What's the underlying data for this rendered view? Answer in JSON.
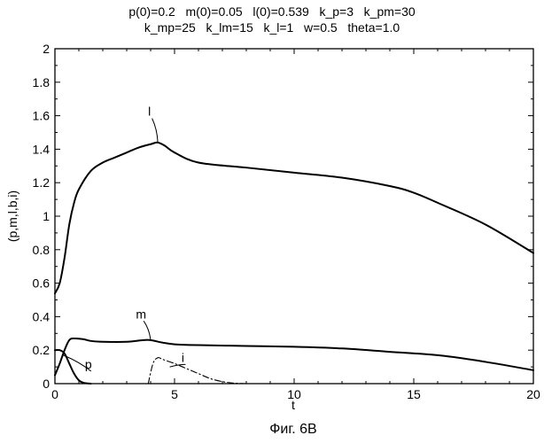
{
  "header": {
    "line1": "p(0)=0.2   m(0)=0.05   l(0)=0.539   k_p=3   k_pm=30",
    "line2": "k_mp=25   k_lm=15   k_l=1   w=0.5   theta=1.0"
  },
  "caption": "Фиг. 6В",
  "chart_data": {
    "type": "line",
    "xlabel": "t",
    "ylabel": "(p,m,l,b,i)",
    "xlim": [
      0,
      20
    ],
    "ylim": [
      0,
      2
    ],
    "x_ticks": [
      0,
      5,
      10,
      15,
      20
    ],
    "y_ticks": [
      0,
      0.2,
      0.4,
      0.6,
      0.8,
      1,
      1.2,
      1.4,
      1.6,
      1.8,
      2
    ],
    "x_tick_labels": [
      "0",
      "5",
      "10",
      "15",
      "20"
    ],
    "y_tick_labels": [
      "0",
      "0.2",
      "0.4",
      "0.6",
      "0.8",
      "1",
      "1.2",
      "1.4",
      "1.6",
      "1.8",
      "2"
    ],
    "grid": false,
    "series": [
      {
        "name": "l",
        "style": "solid",
        "points": [
          [
            0,
            0.539
          ],
          [
            0.2,
            0.6
          ],
          [
            0.4,
            0.75
          ],
          [
            0.6,
            0.95
          ],
          [
            0.8,
            1.08
          ],
          [
            1,
            1.16
          ],
          [
            1.5,
            1.27
          ],
          [
            2,
            1.32
          ],
          [
            2.5,
            1.35
          ],
          [
            3,
            1.38
          ],
          [
            3.5,
            1.41
          ],
          [
            4,
            1.43
          ],
          [
            4.3,
            1.44
          ],
          [
            4.6,
            1.42
          ],
          [
            5,
            1.38
          ],
          [
            6,
            1.32
          ],
          [
            8,
            1.29
          ],
          [
            10,
            1.26
          ],
          [
            12,
            1.23
          ],
          [
            14,
            1.18
          ],
          [
            15,
            1.14
          ],
          [
            16,
            1.08
          ],
          [
            18,
            0.95
          ],
          [
            20,
            0.78
          ]
        ]
      },
      {
        "name": "m",
        "style": "solid",
        "points": [
          [
            0,
            0.05
          ],
          [
            0.2,
            0.12
          ],
          [
            0.4,
            0.2
          ],
          [
            0.6,
            0.26
          ],
          [
            0.8,
            0.27
          ],
          [
            1.2,
            0.265
          ],
          [
            1.5,
            0.255
          ],
          [
            2,
            0.25
          ],
          [
            3,
            0.25
          ],
          [
            3.7,
            0.26
          ],
          [
            4,
            0.26
          ],
          [
            4.5,
            0.245
          ],
          [
            5,
            0.235
          ],
          [
            6,
            0.23
          ],
          [
            8,
            0.225
          ],
          [
            10,
            0.22
          ],
          [
            12,
            0.21
          ],
          [
            14,
            0.19
          ],
          [
            16,
            0.17
          ],
          [
            18,
            0.13
          ],
          [
            20,
            0.08
          ]
        ]
      },
      {
        "name": "p",
        "style": "solid",
        "points": [
          [
            0,
            0.2
          ],
          [
            0.2,
            0.2
          ],
          [
            0.4,
            0.18
          ],
          [
            0.6,
            0.12
          ],
          [
            0.8,
            0.06
          ],
          [
            1,
            0.02
          ],
          [
            1.2,
            0.005
          ],
          [
            1.5,
            0
          ]
        ]
      },
      {
        "name": "i",
        "style": "dash-dot",
        "points": [
          [
            3.9,
            0
          ],
          [
            4.1,
            0.12
          ],
          [
            4.3,
            0.155
          ],
          [
            4.5,
            0.145
          ],
          [
            5,
            0.12
          ],
          [
            5.5,
            0.09
          ],
          [
            6,
            0.06
          ],
          [
            6.5,
            0.03
          ],
          [
            7,
            0.012
          ],
          [
            7.5,
            0.003
          ],
          [
            8,
            0
          ]
        ]
      }
    ],
    "annotations": [
      {
        "text": "l",
        "at": [
          4.3,
          1.44
        ],
        "label_at": [
          3.95,
          1.6
        ]
      },
      {
        "text": "m",
        "at": [
          4.0,
          0.26
        ],
        "label_at": [
          3.6,
          0.39
        ]
      },
      {
        "text": "p",
        "at": [
          0.35,
          0.17
        ],
        "label_at": [
          1.4,
          0.09
        ]
      },
      {
        "text": "i",
        "at": [
          4.8,
          0.1
        ],
        "label_at": [
          5.35,
          0.13
        ]
      }
    ]
  }
}
